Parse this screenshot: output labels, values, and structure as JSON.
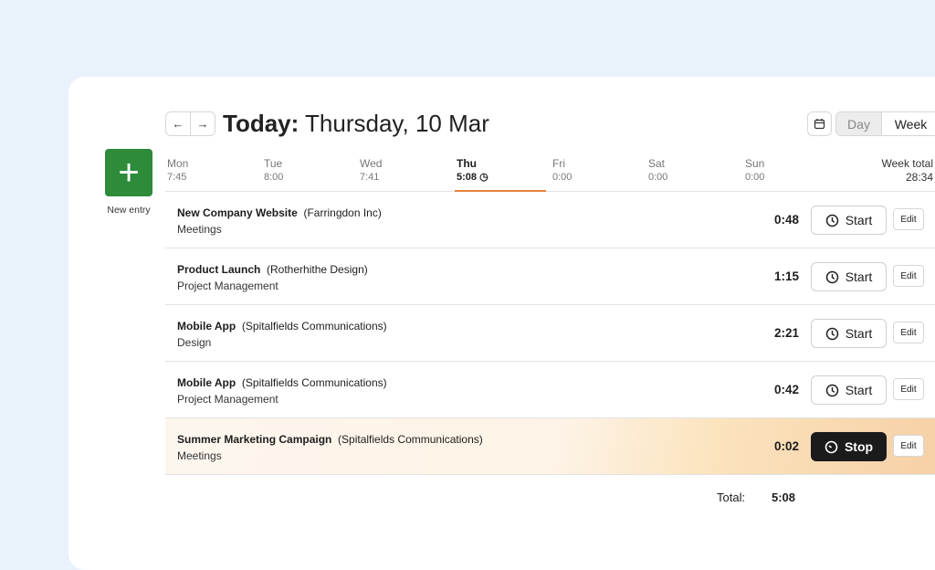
{
  "header": {
    "prev": "←",
    "next": "→",
    "title_bold": "Today:",
    "title_rest": " Thursday, 10 Mar",
    "view_day": "Day",
    "view_week": "Week"
  },
  "new_entry": {
    "icon": "+",
    "label": "New entry"
  },
  "days": [
    {
      "name": "Mon",
      "time": "7:45"
    },
    {
      "name": "Tue",
      "time": "8:00"
    },
    {
      "name": "Wed",
      "time": "7:41"
    },
    {
      "name": "Thu",
      "time": "5:08"
    },
    {
      "name": "Fri",
      "time": "0:00"
    },
    {
      "name": "Sat",
      "time": "0:00"
    },
    {
      "name": "Sun",
      "time": "0:00"
    }
  ],
  "week_total": {
    "label": "Week total",
    "value": "28:34"
  },
  "entries": [
    {
      "project": "New Company Website",
      "client": "(Farringdon Inc)",
      "task": "Meetings",
      "duration": "0:48",
      "action": "Start",
      "edit": "Edit"
    },
    {
      "project": "Product Launch",
      "client": "(Rotherhithe Design)",
      "task": "Project Management",
      "duration": "1:15",
      "action": "Start",
      "edit": "Edit"
    },
    {
      "project": "Mobile App",
      "client": "(Spitalfields Communications)",
      "task": "Design",
      "duration": "2:21",
      "action": "Start",
      "edit": "Edit"
    },
    {
      "project": "Mobile App",
      "client": "(Spitalfields Communications)",
      "task": "Project Management",
      "duration": "0:42",
      "action": "Start",
      "edit": "Edit"
    },
    {
      "project": "Summer Marketing Campaign",
      "client": "(Spitalfields Communications)",
      "task": "Meetings",
      "duration": "0:02",
      "action": "Stop",
      "edit": "Edit",
      "running": true
    }
  ],
  "total": {
    "label": "Total:",
    "value": "5:08"
  },
  "colors": {
    "accent_green": "#2e8b3a",
    "today_underline": "#e8813a",
    "stop_button": "#1b1b1b"
  }
}
